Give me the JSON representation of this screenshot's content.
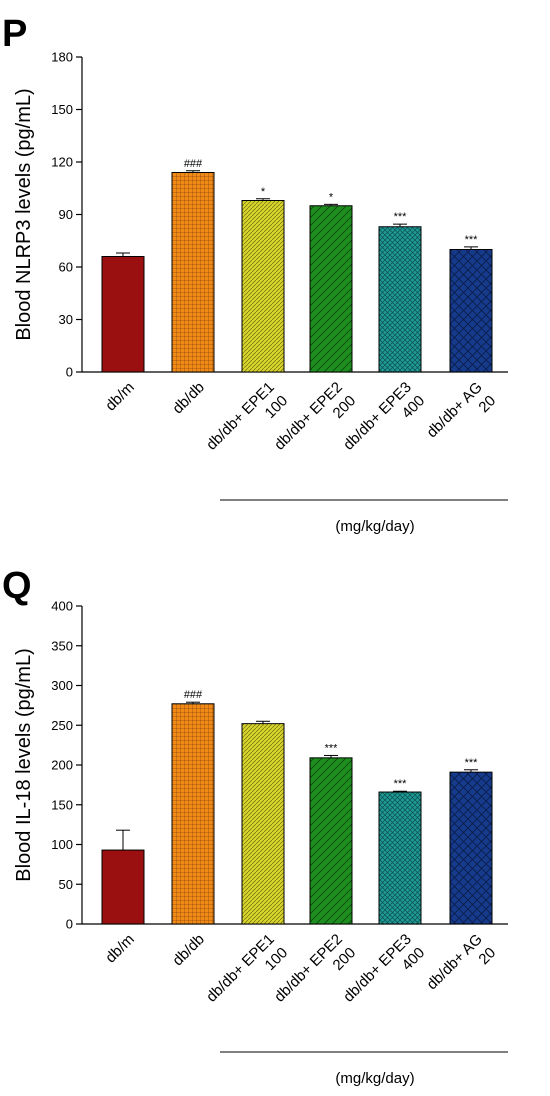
{
  "chart_data": [
    {
      "type": "bar",
      "panel_label": "P",
      "ylabel": "Blood NLRP3 levels (pg/mL)",
      "ylim": [
        0,
        180
      ],
      "yticks": [
        0,
        30,
        60,
        90,
        120,
        150,
        180
      ],
      "categories": [
        [
          "db/m"
        ],
        [
          "db/db"
        ],
        [
          "db/db+ EPE1",
          "100"
        ],
        [
          "db/db+ EPE2",
          "200"
        ],
        [
          "db/db+  EPE3",
          "400"
        ],
        [
          "db/db+ AG",
          "20"
        ]
      ],
      "values": [
        66,
        114,
        98,
        95,
        83,
        70
      ],
      "errors": [
        2,
        1,
        1,
        0.8,
        1.5,
        1.5
      ],
      "significance": [
        "",
        "###",
        "*",
        "*",
        "***",
        "***"
      ],
      "units_label": "(mg/kg/day)"
    },
    {
      "type": "bar",
      "panel_label": "Q",
      "ylabel": "Blood IL-18 levels (pg/mL)",
      "ylim": [
        0,
        400
      ],
      "yticks": [
        0,
        50,
        100,
        150,
        200,
        250,
        300,
        350,
        400
      ],
      "categories": [
        [
          "db/m"
        ],
        [
          "db/db"
        ],
        [
          "db/db+ EPE1",
          "100"
        ],
        [
          "db/db+ EPE2",
          "200"
        ],
        [
          "db/db+  EPE3",
          "400"
        ],
        [
          "db/db+ AG",
          "20"
        ]
      ],
      "values": [
        93,
        277,
        252,
        209,
        166,
        191
      ],
      "errors": [
        25,
        2,
        3,
        3,
        1,
        3
      ],
      "significance": [
        "",
        "###",
        "",
        "***",
        "***",
        "***"
      ],
      "units_label": "(mg/kg/day)"
    }
  ],
  "colors": {
    "bars": [
      "#9a1010",
      "#f28a18",
      "#d8d62c",
      "#1e8f1e",
      "#1f9a96",
      "#163b8c"
    ],
    "pattern_lines": [
      "#9a1010",
      "#8a4a08",
      "#6e6c10",
      "#0c4a0c",
      "#0c4e4c",
      "#0a1c4a"
    ]
  }
}
